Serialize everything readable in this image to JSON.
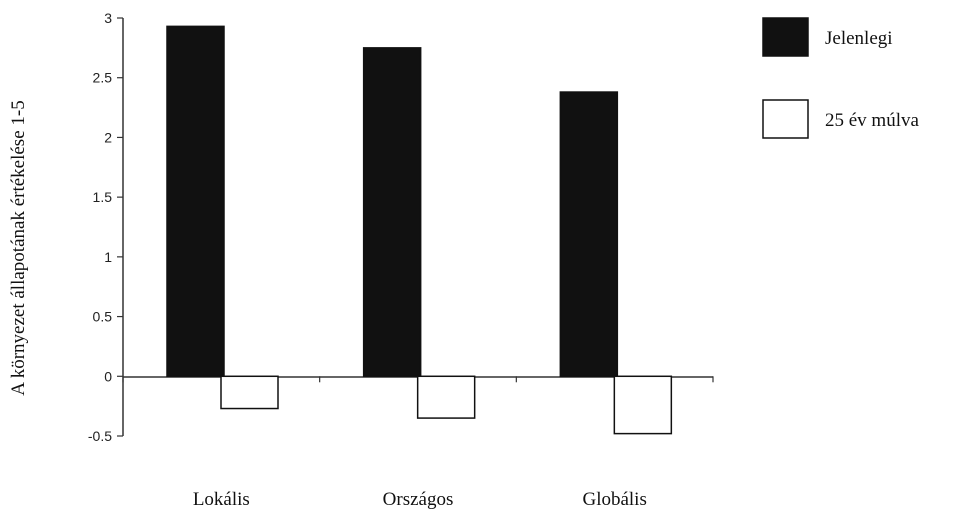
{
  "chart_data": {
    "type": "bar",
    "ylabel": "A környezet állapotának értékelése 1-5",
    "categories": [
      "Lokális",
      "Országos",
      "Globális"
    ],
    "series": [
      {
        "name": "Jelenlegi",
        "values": [
          2.93,
          2.75,
          2.38
        ],
        "color": "#111111",
        "fill": "#111111"
      },
      {
        "name": "25 év múlva",
        "values": [
          -0.27,
          -0.35,
          -0.48
        ],
        "color": "#111111",
        "fill": "#ffffff"
      }
    ],
    "ylim": [
      -0.5,
      3
    ],
    "yticks": [
      -0.5,
      0,
      0.5,
      1,
      1.5,
      2,
      2.5,
      3
    ],
    "ytick_labels": [
      "-0.5",
      "0",
      "0.5",
      "1",
      "1.5",
      "2",
      "2.5",
      "3"
    ],
    "grid": false,
    "legend_position": "top-right"
  }
}
